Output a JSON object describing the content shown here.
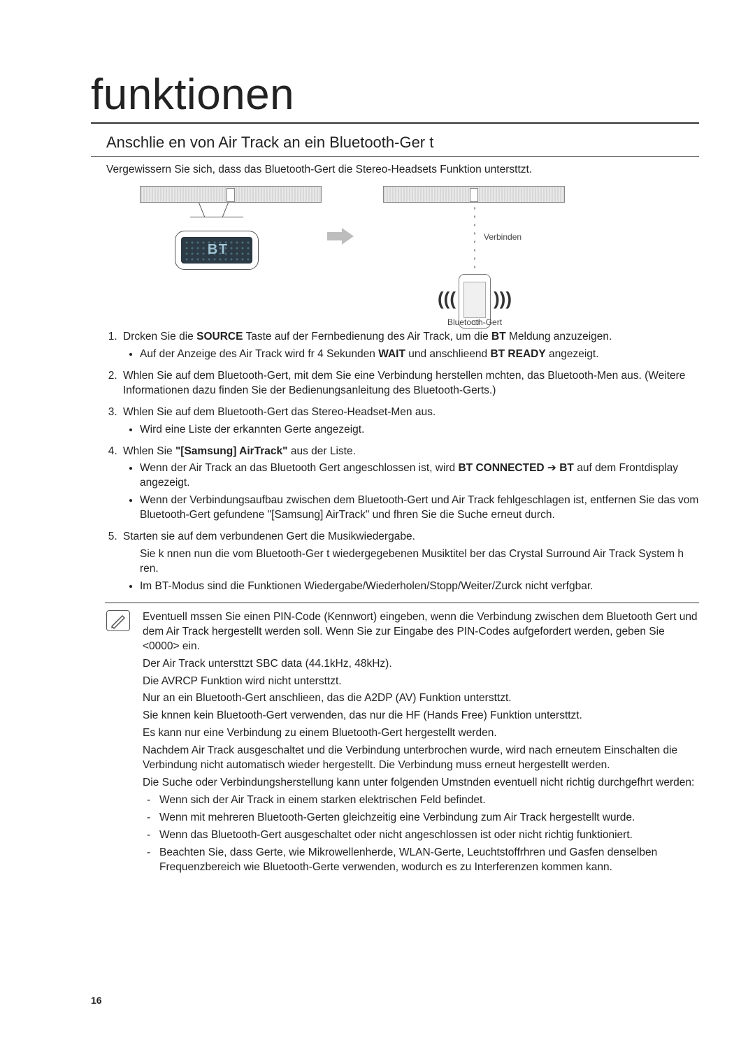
{
  "heading": "funktionen",
  "subheading": "Anschlie en von Air Track an ein Bluetooth-Ger t",
  "intro": "Vergewissern Sie sich, dass das Bluetooth-Gert die Stereo-Headsets Funktion untersttzt.",
  "diagram": {
    "verbinden_label": "Verbinden",
    "device_label": "Bluetooth-Gert",
    "callout_text": "B T"
  },
  "steps": [
    {
      "parts": [
        {
          "t": "Drcken Sie die "
        },
        {
          "t": "SOURCE",
          "b": true
        },
        {
          "t": " Taste auf der Fernbedienung des Air Track, um die "
        },
        {
          "t": "BT",
          "b": true
        },
        {
          "t": " Meldung anzuzeigen."
        }
      ],
      "bullets": [
        [
          {
            "t": "Auf der Anzeige des Air Track wird fr 4 Sekunden "
          },
          {
            "t": "WAIT",
            "b": true
          },
          {
            "t": " und anschlieend "
          },
          {
            "t": "BT READY",
            "b": true
          },
          {
            "t": " angezeigt."
          }
        ]
      ]
    },
    {
      "parts": [
        {
          "t": "Whlen Sie auf dem Bluetooth-Gert, mit dem Sie eine Verbindung herstellen mchten, das Bluetooth-Men aus. (Weitere Informationen dazu finden Sie der Bedienungsanleitung des Bluetooth-Gerts.)"
        }
      ]
    },
    {
      "parts": [
        {
          "t": "Whlen Sie auf dem Bluetooth-Gert das Stereo-Headset-Men aus."
        }
      ],
      "bullets": [
        [
          {
            "t": "Wird eine Liste der erkannten Gerte angezeigt."
          }
        ]
      ]
    },
    {
      "parts": [
        {
          "t": "Whlen Sie "
        },
        {
          "t": "\"[Samsung] AirTrack\"",
          "b": true
        },
        {
          "t": " aus der Liste."
        }
      ],
      "bullets": [
        [
          {
            "t": "Wenn der Air Track an das Bluetooth Gert angeschlossen ist, wird "
          },
          {
            "t": "BT CONNECTED",
            "b": true
          },
          {
            "t": " ➔ "
          },
          {
            "t": "BT",
            "b": true
          },
          {
            "t": " auf dem Frontdisplay angezeigt."
          }
        ],
        [
          {
            "t": "Wenn der Verbindungsaufbau zwischen dem Bluetooth-Gert und Air Track fehlgeschlagen ist, entfernen Sie das vom Bluetooth-Gert gefundene \"[Samsung] AirTrack\" und fhren Sie die Suche erneut durch."
          }
        ]
      ]
    },
    {
      "parts": [
        {
          "t": "Starten sie auf dem verbundenen Gert die Musikwiedergabe."
        }
      ],
      "subnote": "Sie k nnen nun die vom Bluetooth-Ger t wiedergegebenen Musiktitel  ber das Crystal Surround Air Track System h ren.",
      "bullets": [
        [
          {
            "t": "Im BT-Modus sind die Funktionen Wiedergabe/Wiederholen/Stopp/Weiter/Zurck nicht verfgbar."
          }
        ]
      ]
    }
  ],
  "notes": [
    "Eventuell mssen Sie einen PIN-Code (Kennwort) eingeben, wenn die Verbindung zwischen dem Bluetooth Gert und dem Air Track hergestellt werden soll. Wenn Sie zur Eingabe des PIN-Codes aufgefordert werden, geben Sie <0000> ein.",
    "Der Air Track untersttzt SBC data (44.1kHz, 48kHz).",
    "Die AVRCP Funktion wird nicht untersttzt.",
    "Nur an ein Bluetooth-Gert anschlieen, das die A2DP (AV) Funktion untersttzt.",
    "Sie knnen kein Bluetooth-Gert verwenden, das nur die HF (Hands Free) Funktion untersttzt.",
    "Es kann nur eine Verbindung zu einem Bluetooth-Gert hergestellt werden.",
    "Nachdem Air Track ausgeschaltet und die Verbindung unterbrochen wurde, wird nach erneutem Einschalten die Verbindung nicht automatisch wieder hergestellt. Die Verbindung muss erneut hergestellt werden.",
    "Die Suche oder Verbindungsherstellung kann unter folgenden Umstnden eventuell nicht richtig durchgefhrt werden:"
  ],
  "note_sub": [
    "Wenn sich der Air Track in einem starken elektrischen Feld befindet.",
    "Wenn mit mehreren Bluetooth-Gerten gleichzeitig eine Verbindung zum Air Track hergestellt wurde.",
    "Wenn das Bluetooth-Gert ausgeschaltet oder nicht angeschlossen ist oder nicht richtig funktioniert.",
    "Beachten Sie, dass Gerte, wie Mikrowellenherde, WLAN-Gerte, Leuchtstoffrhren und Gasfen denselben Frequenzbereich wie Bluetooth-Gerte verwenden, wodurch es zu Interferenzen kommen kann."
  ],
  "page_number": "16"
}
